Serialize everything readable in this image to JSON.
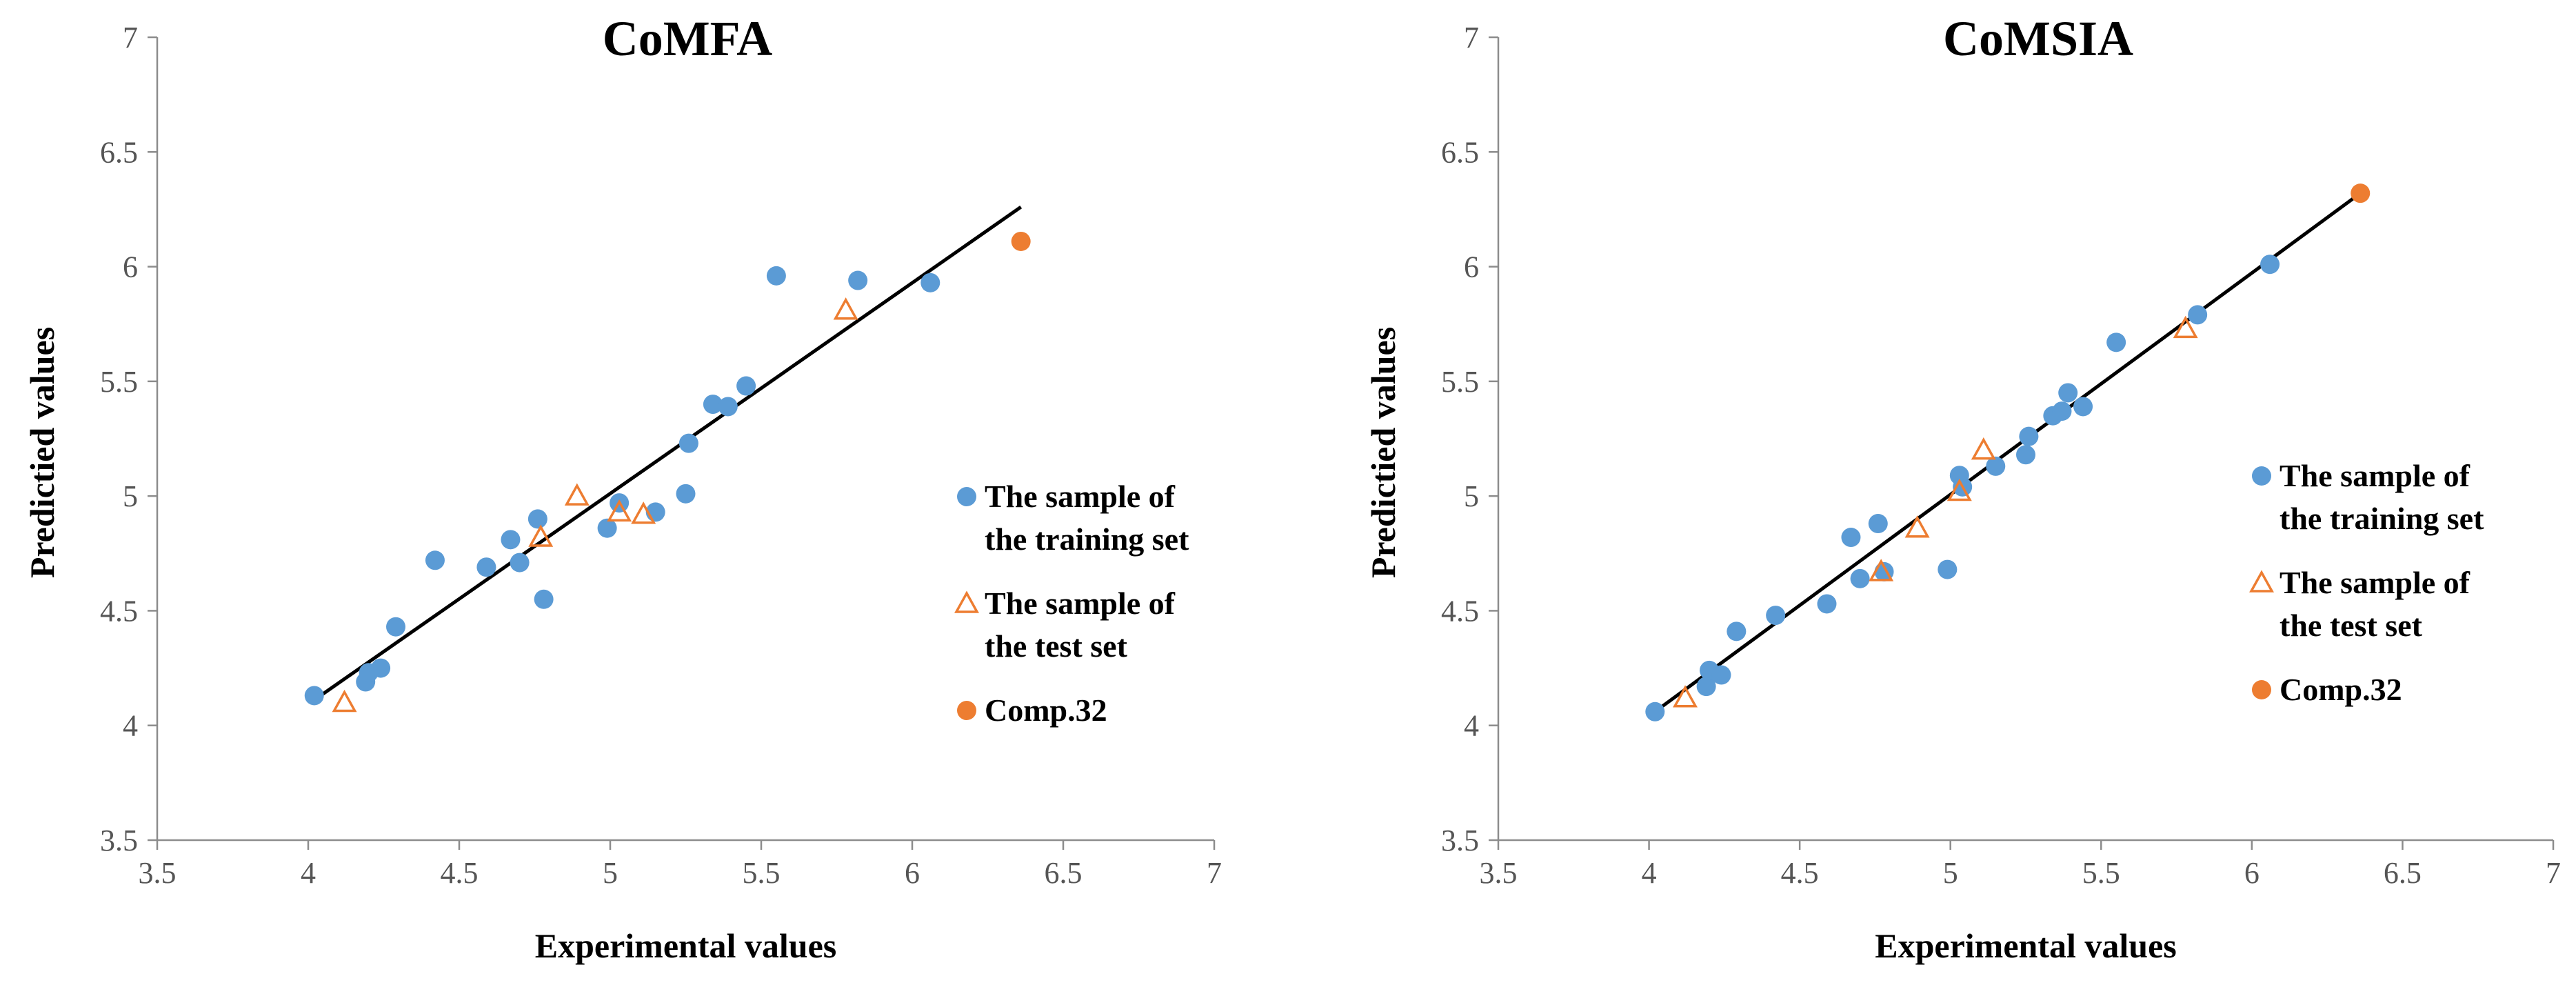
{
  "chart_data": [
    {
      "type": "scatter",
      "title": "CoMFA",
      "xlabel": "Experimental values",
      "ylabel": "Predictied values",
      "xlim": [
        3.5,
        7
      ],
      "ylim": [
        3.5,
        7
      ],
      "xticks": [
        "3.5",
        "4",
        "4.5",
        "5",
        "5.5",
        "6",
        "6.5",
        "7"
      ],
      "yticks": [
        "3.5",
        "4",
        "4.5",
        "5",
        "5.5",
        "6",
        "6.5",
        "7"
      ],
      "fit_line": {
        "x1": 4.03,
        "y1": 4.12,
        "x2": 6.36,
        "y2": 6.26
      },
      "legend": {
        "position": "right"
      },
      "series": [
        {
          "name_line1": "The sample of",
          "name_line2": "the training set",
          "marker": "circle",
          "color": "#5b9bd5",
          "x": [
            4.02,
            4.19,
            4.2,
            4.24,
            4.29,
            4.42,
            4.59,
            4.67,
            4.7,
            4.76,
            4.78,
            4.99,
            5.03,
            5.15,
            5.25,
            5.26,
            5.34,
            5.39,
            5.45,
            5.55,
            5.82,
            6.06
          ],
          "y": [
            4.13,
            4.19,
            4.23,
            4.25,
            4.43,
            4.72,
            4.69,
            4.81,
            4.71,
            4.9,
            4.55,
            4.86,
            4.97,
            4.93,
            5.01,
            5.23,
            5.4,
            5.39,
            5.48,
            5.96,
            5.94,
            5.93
          ]
        },
        {
          "name_line1": "The sample of",
          "name_line2": "the test set",
          "marker": "triangle",
          "color": "#ed7d31",
          "x": [
            4.12,
            4.77,
            4.89,
            5.03,
            5.11,
            5.78
          ],
          "y": [
            4.1,
            4.82,
            5.0,
            4.93,
            4.92,
            5.81
          ]
        },
        {
          "name_line1": "Comp.32",
          "name_line2": "",
          "marker": "circle",
          "color": "#ed7d31",
          "x": [
            6.36
          ],
          "y": [
            6.11
          ]
        }
      ]
    },
    {
      "type": "scatter",
      "title": "CoMSIA",
      "xlabel": "Experimental values",
      "ylabel": "Predictied values",
      "xlim": [
        3.5,
        7
      ],
      "ylim": [
        3.5,
        7
      ],
      "xticks": [
        "3.5",
        "4",
        "4.5",
        "5",
        "5.5",
        "6",
        "6.5",
        "7"
      ],
      "yticks": [
        "3.5",
        "4",
        "4.5",
        "5",
        "5.5",
        "6",
        "6.5",
        "7"
      ],
      "fit_line": {
        "x1": 4.02,
        "y1": 4.06,
        "x2": 6.36,
        "y2": 6.32
      },
      "legend": {
        "position": "right"
      },
      "series": [
        {
          "name_line1": "The sample of",
          "name_line2": "the training set",
          "marker": "circle",
          "color": "#5b9bd5",
          "x": [
            4.02,
            4.19,
            4.2,
            4.24,
            4.29,
            4.42,
            4.59,
            4.67,
            4.7,
            4.76,
            4.78,
            4.99,
            5.03,
            5.04,
            5.15,
            5.25,
            5.26,
            5.34,
            5.37,
            5.39,
            5.44,
            5.55,
            5.82,
            6.06
          ],
          "y": [
            4.06,
            4.17,
            4.24,
            4.22,
            4.41,
            4.48,
            4.53,
            4.82,
            4.64,
            4.88,
            4.67,
            4.68,
            5.09,
            5.04,
            5.13,
            5.18,
            5.26,
            5.35,
            5.37,
            5.45,
            5.39,
            5.67,
            5.79,
            6.01
          ]
        },
        {
          "name_line1": "The sample of",
          "name_line2": "the test set",
          "marker": "triangle",
          "color": "#ed7d31",
          "x": [
            4.12,
            4.77,
            4.89,
            5.03,
            5.11,
            5.78
          ],
          "y": [
            4.12,
            4.67,
            4.86,
            5.02,
            5.2,
            5.73
          ]
        },
        {
          "name_line1": "Comp.32",
          "name_line2": "",
          "marker": "circle",
          "color": "#ed7d31",
          "x": [
            6.36
          ],
          "y": [
            6.32
          ]
        }
      ]
    }
  ]
}
